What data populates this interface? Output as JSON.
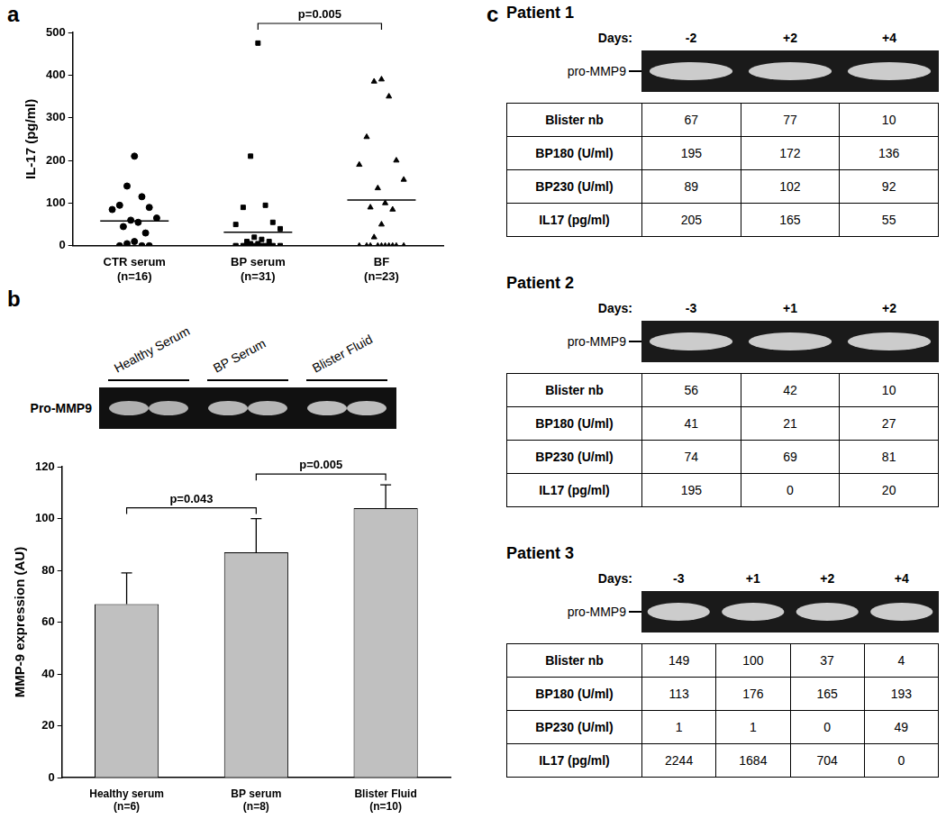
{
  "chart_data": [
    {
      "panel": "a",
      "type": "scatter",
      "y_label": "IL-17 (pg/ml)",
      "ylim": [
        0,
        500
      ],
      "yticks": [
        0,
        100,
        200,
        300,
        400,
        500
      ],
      "grid": false,
      "groups": [
        {
          "category": [
            "CTR serum",
            "(n=16)"
          ],
          "marker": "circle",
          "color": "#000000",
          "values": [
            210,
            140,
            115,
            95,
            90,
            85,
            65,
            60,
            55,
            45,
            30,
            10,
            5,
            0,
            0,
            0
          ],
          "mean": 58
        },
        {
          "category": [
            "BP serum",
            "(n=31)"
          ],
          "marker": "square",
          "color": "#000000",
          "values": [
            475,
            210,
            95,
            90,
            55,
            50,
            40,
            20,
            15,
            10,
            10,
            5,
            5,
            0,
            0,
            0,
            0,
            0,
            0,
            0,
            0,
            0,
            0,
            0,
            0,
            0,
            0,
            0,
            0,
            0,
            0
          ],
          "mean": 32
        },
        {
          "category": [
            "BF",
            "(n=23)"
          ],
          "marker": "triangle",
          "color": "#000000",
          "values": [
            390,
            385,
            350,
            255,
            200,
            190,
            155,
            135,
            100,
            90,
            85,
            50,
            20,
            0,
            0,
            0,
            0,
            0,
            0,
            0,
            0,
            0,
            0
          ],
          "mean": 107
        }
      ],
      "annotations": [
        {
          "text": "p=0.005",
          "between": [
            "BP serum",
            "BF"
          ]
        }
      ]
    },
    {
      "panel": "b",
      "type": "bar",
      "y_label": "MMP-9 expression (AU)",
      "categories": [
        [
          "Healthy serum",
          "(n=6)"
        ],
        [
          "BP serum",
          "(n=8)"
        ],
        [
          "Blister Fluid",
          "(n=10)"
        ]
      ],
      "values": [
        67,
        87,
        104
      ],
      "errors": [
        12,
        13,
        9
      ],
      "color": "#c0c0c0",
      "ylim": [
        0,
        120
      ],
      "yticks": [
        0,
        20,
        40,
        60,
        80,
        100,
        120
      ],
      "grid": false,
      "annotations": [
        {
          "text": "p=0.043",
          "between": [
            "Healthy serum",
            "BP serum"
          ]
        },
        {
          "text": "p=0.005",
          "between": [
            "BP serum",
            "Blister Fluid"
          ]
        }
      ]
    }
  ],
  "panel_b_gel": {
    "band_label": "Pro-MMP9",
    "groups": [
      "Healthy Serum",
      "BP Serum",
      "Blister Fluid"
    ]
  },
  "panel_c": {
    "panel": "c",
    "patients": [
      {
        "title": "Patient 1",
        "days_label": "Days:",
        "days": [
          "-2",
          "+2",
          "+4"
        ],
        "band_label": "pro-MMP9",
        "rows": [
          {
            "label": "Blister nb",
            "values": [
              67,
              77,
              10
            ]
          },
          {
            "label": "BP180 (U/ml)",
            "values": [
              195,
              172,
              136
            ]
          },
          {
            "label": "BP230 (U/ml)",
            "values": [
              89,
              102,
              92
            ]
          },
          {
            "label": "IL17 (pg/ml)",
            "values": [
              205,
              165,
              55
            ]
          }
        ]
      },
      {
        "title": "Patient 2",
        "days_label": "Days:",
        "days": [
          "-3",
          "+1",
          "+2"
        ],
        "band_label": "pro-MMP9",
        "rows": [
          {
            "label": "Blister nb",
            "values": [
              56,
              42,
              10
            ]
          },
          {
            "label": "BP180 (U/ml)",
            "values": [
              41,
              21,
              27
            ]
          },
          {
            "label": "BP230 (U/ml)",
            "values": [
              74,
              69,
              81
            ]
          },
          {
            "label": "IL17 (pg/ml)",
            "values": [
              195,
              0,
              20
            ]
          }
        ]
      },
      {
        "title": "Patient 3",
        "days_label": "Days:",
        "days": [
          "-3",
          "+1",
          "+2",
          "+4"
        ],
        "band_label": "pro-MMP9",
        "rows": [
          {
            "label": "Blister nb",
            "values": [
              149,
              100,
              37,
              4
            ]
          },
          {
            "label": "BP180 (U/ml)",
            "values": [
              113,
              176,
              165,
              193
            ]
          },
          {
            "label": "BP230 (U/ml)",
            "values": [
              1,
              1,
              0,
              49
            ]
          },
          {
            "label": "IL17 (pg/ml)",
            "values": [
              2244,
              1684,
              704,
              0
            ]
          }
        ]
      }
    ]
  }
}
